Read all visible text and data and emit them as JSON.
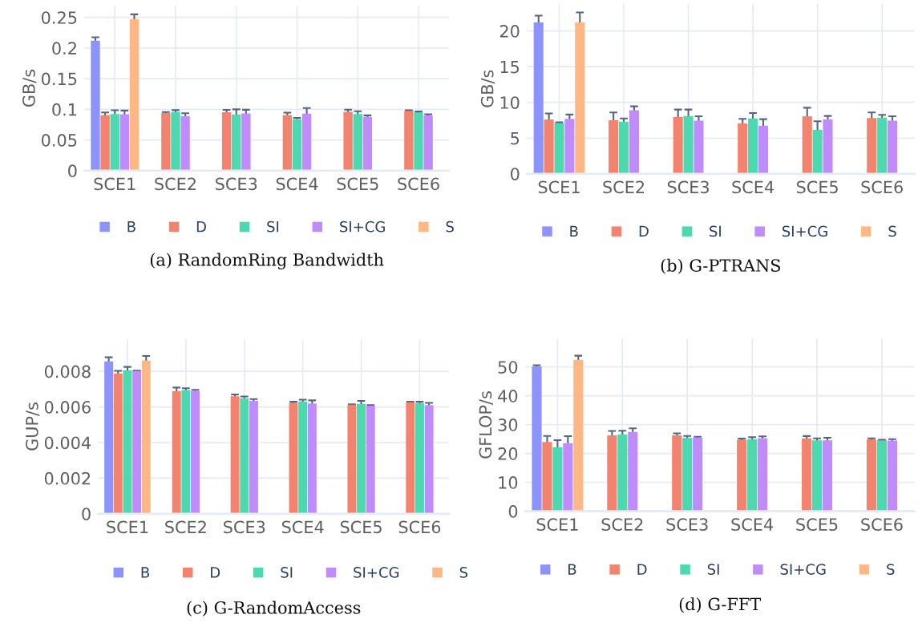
{
  "chart_data": [
    {
      "type": "bar",
      "ylabel": "GB/s",
      "categories": [
        "SCE1",
        "SCE2",
        "SCE3",
        "SCE4",
        "SCE5",
        "SCE6"
      ],
      "ylim": [
        0,
        0.269
      ],
      "yticks": [
        0,
        0.05,
        0.1,
        0.15,
        0.2,
        0.25
      ],
      "grid": true,
      "legend": "bottom",
      "annotations": [
        "(a) RandomRing Bandwidth"
      ],
      "series": [
        {
          "name": "B",
          "color": "#8c94fb",
          "values": [
            0.212,
            null,
            null,
            null,
            null,
            null
          ],
          "errors": [
            0.0055,
            null,
            null,
            null,
            null,
            null
          ]
        },
        {
          "name": "D",
          "color": "#f2836f",
          "values": [
            0.0905,
            0.094,
            0.0952,
            0.0905,
            0.096,
            0.0976
          ],
          "errors": [
            0.0045,
            0.0015,
            0.004,
            0.004,
            0.0035,
            0.001
          ]
        },
        {
          "name": "SI",
          "color": "#4dd8b0",
          "values": [
            0.0924,
            0.0957,
            0.0915,
            0.084,
            0.0924,
            0.095
          ],
          "errors": [
            0.006,
            0.003,
            0.0085,
            0.002,
            0.0045,
            0.0015
          ]
        },
        {
          "name": "SI+CG",
          "color": "#c08cfb",
          "values": [
            0.092,
            0.089,
            0.0933,
            0.093,
            0.0877,
            0.09
          ],
          "errors": [
            0.006,
            0.0045,
            0.006,
            0.009,
            0.0025,
            0.002
          ]
        },
        {
          "name": "S",
          "color": "#ffb885",
          "values": [
            0.247,
            null,
            null,
            null,
            null,
            null
          ],
          "errors": [
            0.008,
            null,
            null,
            null,
            null,
            null
          ]
        }
      ]
    },
    {
      "type": "bar",
      "ylabel": "GB/s",
      "categories": [
        "SCE1",
        "SCE2",
        "SCE3",
        "SCE4",
        "SCE5",
        "SCE6"
      ],
      "ylim": [
        0,
        23.8
      ],
      "yticks": [
        0,
        5,
        10,
        15,
        20
      ],
      "grid": true,
      "legend": "bottom",
      "annotations": [
        "(b) G-PTRANS"
      ],
      "series": [
        {
          "name": "B",
          "color": "#8c94fb",
          "values": [
            21.2,
            null,
            null,
            null,
            null,
            null
          ],
          "errors": [
            0.95,
            null,
            null,
            null,
            null,
            null
          ]
        },
        {
          "name": "D",
          "color": "#f2836f",
          "values": [
            7.6,
            7.5,
            7.95,
            7.05,
            8.05,
            7.8
          ],
          "errors": [
            0.85,
            1.1,
            1.05,
            0.65,
            1.2,
            0.8
          ]
        },
        {
          "name": "SI",
          "color": "#4dd8b0",
          "values": [
            7.1,
            7.3,
            8.1,
            7.75,
            6.15,
            7.85
          ],
          "errors": [
            0.1,
            0.45,
            0.9,
            0.75,
            1.2,
            0.4
          ]
        },
        {
          "name": "SI+CG",
          "color": "#c08cfb",
          "values": [
            7.7,
            8.9,
            7.45,
            6.75,
            7.65,
            7.45
          ],
          "errors": [
            0.6,
            0.55,
            0.6,
            0.9,
            0.45,
            0.6
          ]
        },
        {
          "name": "S",
          "color": "#ffb885",
          "values": [
            21.2,
            null,
            null,
            null,
            null,
            null
          ],
          "errors": [
            1.4,
            null,
            null,
            null,
            null,
            null
          ]
        }
      ]
    },
    {
      "type": "bar",
      "ylabel": "GUP/s",
      "categories": [
        "SCE1",
        "SCE2",
        "SCE3",
        "SCE4",
        "SCE5",
        "SCE6"
      ],
      "ylim": [
        0,
        0.0098
      ],
      "yticks": [
        0,
        0.002,
        0.004,
        0.006,
        0.008
      ],
      "grid": true,
      "legend": "bottom",
      "annotations": [
        "(c) G-RandomAccess"
      ],
      "series": [
        {
          "name": "B",
          "color": "#8c94fb",
          "values": [
            0.00856,
            null,
            null,
            null,
            null,
            null
          ],
          "errors": [
            0.00023,
            null,
            null,
            null,
            null,
            null
          ]
        },
        {
          "name": "D",
          "color": "#f2836f",
          "values": [
            0.00787,
            0.00689,
            0.0066,
            0.00623,
            0.00613,
            0.00626
          ],
          "errors": [
            0.00016,
            0.0002,
            0.0001,
            6e-05,
            2e-05,
            3e-05
          ]
        },
        {
          "name": "SI",
          "color": "#4dd8b0",
          "values": [
            0.00805,
            0.00695,
            0.00649,
            0.00631,
            0.00617,
            0.00621
          ],
          "errors": [
            0.0002,
            0.0001,
            0.0001,
            0.0001,
            0.00017,
            8e-05
          ]
        },
        {
          "name": "SI+CG",
          "color": "#c08cfb",
          "values": [
            0.00802,
            0.0069,
            0.00634,
            0.0062,
            0.00607,
            0.0061
          ],
          "errors": [
            2e-05,
            6e-05,
            0.0001,
            0.00017,
            3e-05,
            0.00013
          ]
        },
        {
          "name": "S",
          "color": "#ffb885",
          "values": [
            0.0086,
            null,
            null,
            null,
            null,
            null
          ],
          "errors": [
            0.00026,
            null,
            null,
            null,
            null,
            null
          ]
        }
      ]
    },
    {
      "type": "bar",
      "ylabel": "GFLOP/s",
      "categories": [
        "SCE1",
        "SCE2",
        "SCE3",
        "SCE4",
        "SCE5",
        "SCE6"
      ],
      "ylim": [
        0,
        59.8
      ],
      "yticks": [
        0,
        10,
        20,
        30,
        40,
        50
      ],
      "grid": true,
      "legend": "bottom",
      "annotations": [
        "(d) G-FFT"
      ],
      "series": [
        {
          "name": "B",
          "color": "#8c94fb",
          "values": [
            50.2,
            null,
            null,
            null,
            null,
            null
          ],
          "errors": [
            0.4,
            null,
            null,
            null,
            null,
            null
          ]
        },
        {
          "name": "D",
          "color": "#f2836f",
          "values": [
            24.0,
            26.3,
            26.3,
            24.75,
            25.25,
            24.85
          ],
          "errors": [
            2.1,
            1.5,
            0.7,
            0.4,
            0.8,
            0.4
          ]
        },
        {
          "name": "SI",
          "color": "#4dd8b0",
          "values": [
            22.2,
            26.6,
            25.4,
            24.95,
            24.55,
            24.55
          ],
          "errors": [
            2.4,
            1.3,
            0.7,
            0.7,
            0.7,
            0.2
          ]
        },
        {
          "name": "SI+CG",
          "color": "#c08cfb",
          "values": [
            23.6,
            27.5,
            25.5,
            25.35,
            24.55,
            24.45
          ],
          "errors": [
            2.4,
            1.2,
            0.3,
            0.6,
            0.9,
            0.5
          ]
        },
        {
          "name": "S",
          "color": "#ffb885",
          "values": [
            52.5,
            null,
            null,
            null,
            null,
            null
          ],
          "errors": [
            1.4,
            null,
            null,
            null,
            null,
            null
          ]
        }
      ]
    }
  ]
}
